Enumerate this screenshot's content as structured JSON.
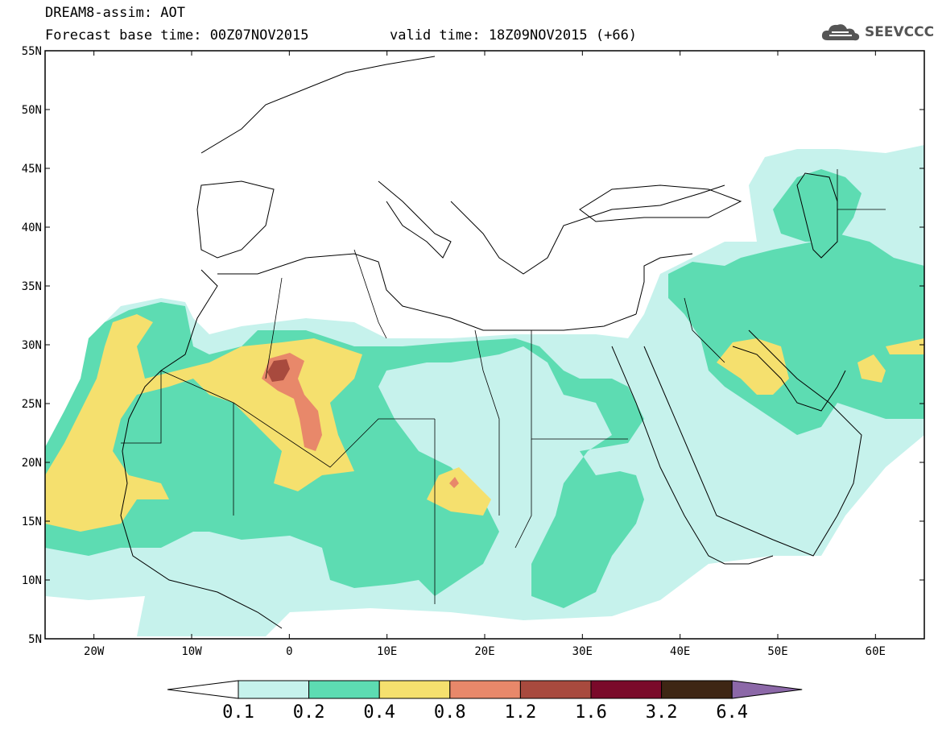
{
  "header": {
    "line1": "DREAM8-assim: AOT",
    "base_time": "Forecast base time: 00Z07NOV2015",
    "valid_time": "valid time: 18Z09NOV2015 (+66)",
    "logo_text": "SEEVCCC",
    "logo_icon": "cloud-icon"
  },
  "map": {
    "extent": {
      "lon": [
        -25,
        65
      ],
      "lat": [
        5,
        55
      ]
    },
    "lat_ticks": [
      "55N",
      "50N",
      "45N",
      "40N",
      "35N",
      "30N",
      "25N",
      "20N",
      "15N",
      "10N",
      "5N"
    ],
    "lon_ticks": [
      "20W",
      "10W",
      "0",
      "10E",
      "20E",
      "30E",
      "40E",
      "50E",
      "60E"
    ],
    "background_color": "#ffffff",
    "coastline_color": "#000000"
  },
  "colorbar": {
    "levels": [
      "0.1",
      "0.2",
      "0.4",
      "0.8",
      "1.2",
      "1.6",
      "3.2",
      "6.4"
    ],
    "colors": [
      "#c6f2ec",
      "#5ddcb2",
      "#f5e06e",
      "#e8886a",
      "#a84a3e",
      "#7a0a2a",
      "#3e2614",
      "#8c68a8"
    ],
    "low_arrow_color": "#ffffff"
  }
}
